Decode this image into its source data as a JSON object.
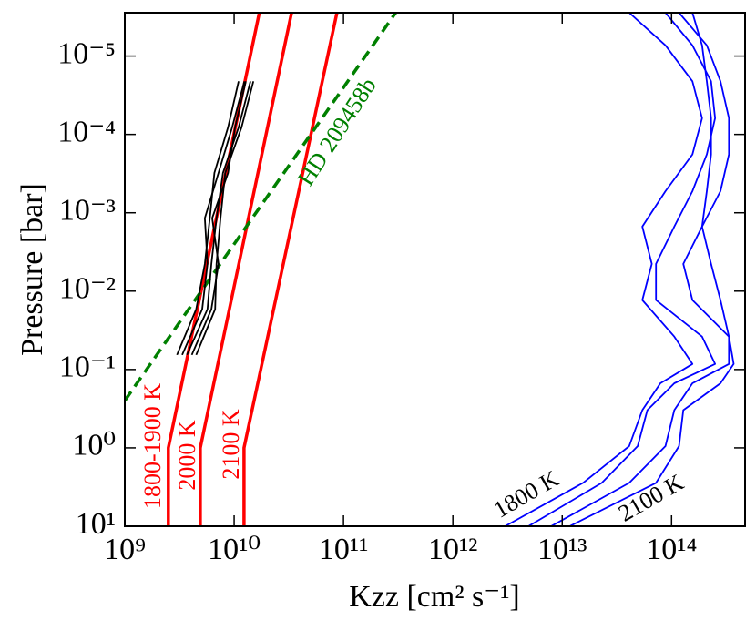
{
  "chart_data": {
    "type": "line",
    "x_label": "Kzz [cm² s⁻¹]",
    "y_label": "Pressure [bar]",
    "x_scale": "log",
    "y_scale": "log",
    "xlim": [
      1000000000.0,
      470000000000000.0
    ],
    "ylim": [
      10,
      2.8e-06
    ],
    "xticks": [
      {
        "value": 1000000000.0,
        "label": "10⁹"
      },
      {
        "value": 10000000000.0,
        "label": "10¹⁰"
      },
      {
        "value": 100000000000.0,
        "label": "10¹¹"
      },
      {
        "value": 1000000000000.0,
        "label": "10¹²"
      },
      {
        "value": 10000000000000.0,
        "label": "10¹³"
      },
      {
        "value": 100000000000000.0,
        "label": "10¹⁴"
      }
    ],
    "yticks": [
      {
        "value": 10,
        "label": "10¹"
      },
      {
        "value": 1,
        "label": "10⁰"
      },
      {
        "value": 0.1,
        "label": "10⁻¹"
      },
      {
        "value": 0.01,
        "label": "10⁻²"
      },
      {
        "value": 0.001,
        "label": "10⁻³"
      },
      {
        "value": 0.0001,
        "label": "10⁻⁴"
      },
      {
        "value": 1e-05,
        "label": "10⁻⁵"
      }
    ],
    "series": [
      {
        "color": "#ff0000",
        "style": "solid",
        "width": 3.5,
        "x": [
          2500000000.0,
          2500000000.0,
          17000000000.0
        ],
        "values": [
          10,
          1,
          2.8e-06
        ]
      },
      {
        "color": "#ff0000",
        "style": "solid",
        "width": 3.5,
        "x": [
          4900000000.0,
          4900000000.0,
          33500000000.0
        ],
        "values": [
          10,
          1,
          2.8e-06
        ]
      },
      {
        "color": "#ff0000",
        "style": "solid",
        "width": 3.5,
        "x": [
          12300000000.0,
          12300000000.0,
          87000000000.0
        ],
        "values": [
          10,
          1,
          2.8e-06
        ]
      },
      {
        "color": "#008000",
        "style": "dashed",
        "width": 3.5,
        "x": [
          1000000000.0,
          300000000000.0
        ],
        "values": [
          0.25,
          2.8e-06
        ]
      },
      {
        "color": "#000000",
        "style": "solid",
        "width": 1.8,
        "x": [
          3000000000.0,
          4500000000.0,
          5400000000.0,
          6000000000.0,
          6600000000.0,
          8800000000.0,
          11000000000.0
        ],
        "values": [
          0.065,
          0.017,
          0.0045,
          0.00117,
          0.00031,
          8.1e-05,
          2.1e-05
        ]
      },
      {
        "color": "#000000",
        "style": "solid",
        "width": 1.8,
        "x": [
          3350000000.0,
          5100000000.0,
          5700000000.0,
          5400000000.0,
          7200000000.0,
          9600000000.0,
          12400000000.0
        ],
        "values": [
          0.065,
          0.017,
          0.0045,
          0.00117,
          0.00031,
          8.1e-05,
          2.1e-05
        ]
      },
      {
        "color": "#000000",
        "style": "solid",
        "width": 1.8,
        "x": [
          3700000000.0,
          5700000000.0,
          6200000000.0,
          6900000000.0,
          7900000000.0,
          11000000000.0,
          14100000000.0
        ],
        "values": [
          0.065,
          0.017,
          0.0045,
          0.00117,
          0.00031,
          8.1e-05,
          2.1e-05
        ]
      },
      {
        "color": "#000000",
        "style": "solid",
        "width": 1.8,
        "x": [
          4100000000.0,
          6200000000.0,
          7200000000.0,
          6300000000.0,
          8800000000.0,
          10200000000.0,
          12800000000.0
        ],
        "values": [
          0.065,
          0.017,
          0.0045,
          0.00117,
          0.00031,
          8.1e-05,
          2.1e-05
        ]
      },
      {
        "color": "#000000",
        "style": "solid",
        "width": 1.8,
        "x": [
          4500000000.0,
          6700000000.0,
          6900000000.0,
          7500000000.0,
          8300000000.0,
          11700000000.0,
          15000000000.0
        ],
        "values": [
          0.065,
          0.017,
          0.0045,
          0.00117,
          0.00031,
          8.1e-05,
          2.1e-05
        ]
      },
      {
        "color": "#0000ff",
        "style": "solid",
        "width": 1.8,
        "x": [
          3000000000000.0,
          15500000000000.0,
          41000000000000.0,
          54000000000000.0,
          79000000000000.0,
          155000000000000.0,
          106000000000000.0,
          54000000000000.0,
          66000000000000.0,
          54000000000000.0,
          88000000000000.0,
          155000000000000.0,
          190000000000000.0,
          155000000000000.0,
          88000000000000.0,
          41000000000000.0
        ],
        "values": [
          10,
          2.8,
          0.95,
          0.33,
          0.15,
          0.085,
          0.038,
          0.013,
          0.0045,
          0.0015,
          0.00053,
          0.00018,
          6.2e-05,
          2.1e-05,
          7.3e-06,
          2.8e-06
        ]
      },
      {
        "color": "#0000ff",
        "style": "solid",
        "width": 1.8,
        "x": [
          4900000000000.0,
          23000000000000.0,
          49000000000000.0,
          60000000000000.0,
          106000000000000.0,
          250000000000000.0,
          190000000000000.0,
          72000000000000.0,
          72000000000000.0,
          106000000000000.0,
          155000000000000.0,
          210000000000000.0,
          250000000000000.0,
          230000000000000.0,
          155000000000000.0,
          88000000000000.0
        ],
        "values": [
          10,
          2.8,
          0.95,
          0.33,
          0.15,
          0.085,
          0.038,
          0.013,
          0.0045,
          0.0015,
          0.00053,
          0.00018,
          6.2e-05,
          2.1e-05,
          7.3e-06,
          2.8e-06
        ]
      },
      {
        "color": "#0000ff",
        "style": "solid",
        "width": 1.8,
        "x": [
          7900000000000.0,
          41000000000000.0,
          88000000000000.0,
          106000000000000.0,
          155000000000000.0,
          335000000000000.0,
          335000000000000.0,
          155000000000000.0,
          128000000000000.0,
          190000000000000.0,
          280000000000000.0,
          335000000000000.0,
          335000000000000.0,
          280000000000000.0,
          210000000000000.0,
          117000000000000.0
        ],
        "values": [
          10,
          2.8,
          0.95,
          0.33,
          0.15,
          0.085,
          0.038,
          0.013,
          0.0045,
          0.0015,
          0.00053,
          0.00018,
          6.2e-05,
          2.1e-05,
          7.3e-06,
          2.8e-06
        ]
      },
      {
        "color": "#0000ff",
        "style": "solid",
        "width": 1.8,
        "x": [
          11700000000000.0,
          72000000000000.0,
          117000000000000.0,
          128000000000000.0,
          280000000000000.0,
          370000000000000.0,
          335000000000000.0,
          280000000000000.0,
          230000000000000.0,
          190000000000000.0,
          210000000000000.0,
          230000000000000.0,
          230000000000000.0,
          210000000000000.0,
          190000000000000.0,
          155000000000000.0
        ],
        "values": [
          10,
          2.8,
          0.95,
          0.33,
          0.15,
          0.085,
          0.038,
          0.013,
          0.0045,
          0.0015,
          0.00053,
          0.00018,
          6.2e-05,
          2.1e-05,
          7.3e-06,
          2.8e-06
        ]
      }
    ],
    "annotations": [
      {
        "text": "1800-1900 K",
        "color": "#ff0000"
      },
      {
        "text": "2000 K",
        "color": "#ff0000"
      },
      {
        "text": "2100 K",
        "color": "#ff0000"
      },
      {
        "text": "HD 209458b",
        "color": "#008000"
      },
      {
        "text": "1800 K",
        "color": "#000000"
      },
      {
        "text": "2100 K",
        "color": "#000000"
      }
    ]
  }
}
